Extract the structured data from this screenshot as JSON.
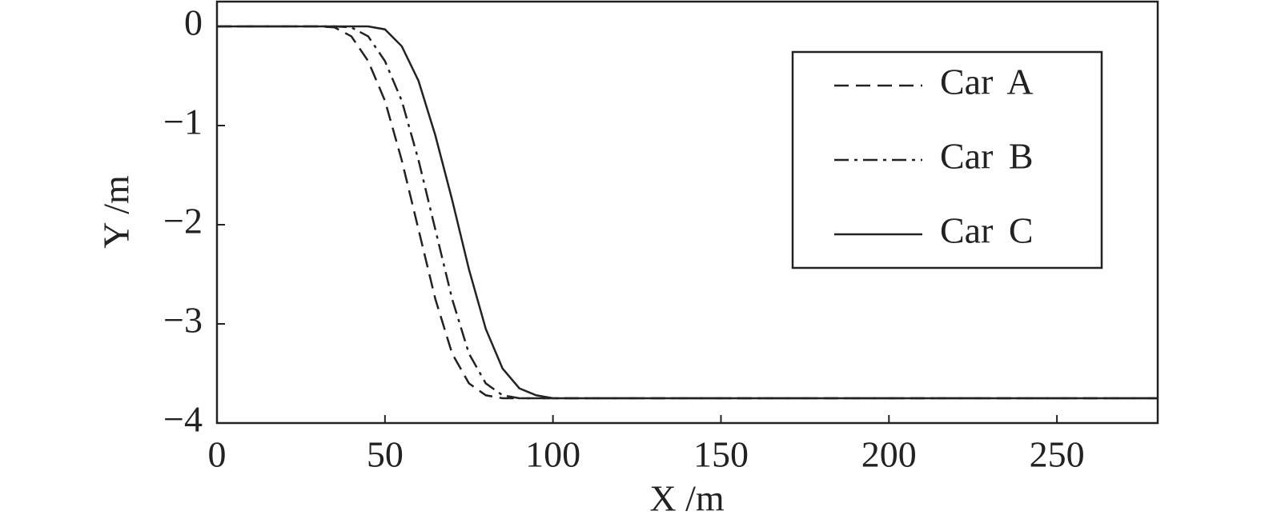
{
  "chart_data": {
    "type": "line",
    "x": [
      0,
      30,
      35,
      40,
      45,
      50,
      55,
      60,
      65,
      70,
      75,
      80,
      85,
      90,
      95,
      100,
      105,
      110,
      280
    ],
    "series": [
      {
        "name": "Car A",
        "color": "#222",
        "linestyle": "dashed",
        "values": [
          0,
          0,
          -0.01,
          -0.1,
          -0.35,
          -0.75,
          -1.35,
          -2.05,
          -2.75,
          -3.3,
          -3.6,
          -3.72,
          -3.75,
          -3.75,
          -3.75,
          -3.75,
          -3.75,
          -3.75,
          -3.75
        ]
      },
      {
        "name": "Car B",
        "color": "#222",
        "linestyle": "dashdot",
        "values": [
          0,
          0,
          0,
          -0.01,
          -0.1,
          -0.35,
          -0.75,
          -1.35,
          -2.05,
          -2.75,
          -3.3,
          -3.6,
          -3.72,
          -3.75,
          -3.75,
          -3.75,
          -3.75,
          -3.75,
          -3.75
        ]
      },
      {
        "name": "Car C",
        "color": "#222",
        "linestyle": "solid",
        "values": [
          0,
          0,
          0,
          0,
          0,
          -0.03,
          -0.2,
          -0.55,
          -1.1,
          -1.75,
          -2.45,
          -3.05,
          -3.45,
          -3.65,
          -3.72,
          -3.75,
          -3.75,
          -3.75,
          -3.75
        ]
      }
    ],
    "xlabel": "X /m",
    "ylabel": "Y /m",
    "xlim": [
      0,
      280
    ],
    "ylim": [
      -4,
      0.25
    ],
    "xticks": [
      0,
      50,
      100,
      150,
      200,
      250
    ],
    "yticks": [
      {
        "value": -4,
        "label": "−4"
      },
      {
        "value": -3,
        "label": "−3"
      },
      {
        "value": -2,
        "label": "−2"
      },
      {
        "value": -1,
        "label": "−1"
      },
      0
    ],
    "legend": "upper right",
    "grid": false
  }
}
